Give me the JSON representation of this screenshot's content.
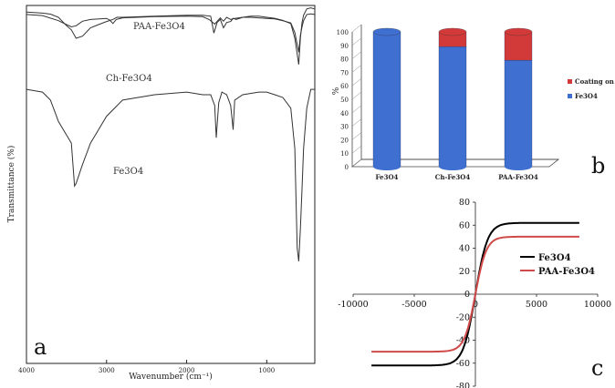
{
  "chart_data": [
    {
      "panel": "a",
      "type": "line",
      "xlabel": "Wavenumber (cm⁻¹)",
      "ylabel": "Transmittance (%)",
      "xlim": [
        4000,
        400
      ],
      "xticks": [
        4000,
        3000,
        2000,
        1000
      ],
      "series": [
        {
          "name": "PAA-Fe3O4",
          "x": [
            4000,
            3800,
            3600,
            3500,
            3440,
            3380,
            3300,
            3200,
            3000,
            2960,
            2920,
            2880,
            2800,
            2400,
            2000,
            1800,
            1720,
            1650,
            1580,
            1540,
            1500,
            1450,
            1400,
            1300,
            1200,
            1100,
            1000,
            900,
            800,
            700,
            650,
            600,
            580,
            560,
            540,
            500,
            450,
            400
          ],
          "y": [
            97,
            95,
            86,
            79,
            75,
            77,
            85,
            88,
            90,
            87,
            81,
            88,
            91,
            93,
            94,
            93,
            88,
            80,
            91,
            85,
            92,
            88,
            90,
            92,
            92,
            91,
            90,
            89,
            86,
            82,
            65,
            30,
            60,
            75,
            86,
            97,
            98,
            97
          ]
        },
        {
          "name": "Ch-Fe3O4",
          "x": [
            4000,
            3800,
            3700,
            3600,
            3500,
            3440,
            3380,
            3300,
            3200,
            3100,
            3000,
            2920,
            2870,
            2800,
            2400,
            2000,
            1800,
            1700,
            1660,
            1620,
            1580,
            1540,
            1500,
            1450,
            1420,
            1380,
            1300,
            1200,
            1100,
            1000,
            900,
            800,
            700,
            650,
            600,
            580,
            560,
            540,
            500,
            450,
            400
          ],
          "y": [
            85,
            84,
            83,
            80,
            72,
            68,
            60,
            62,
            70,
            73,
            76,
            78,
            80,
            80,
            81,
            82,
            82,
            81,
            65,
            75,
            78,
            70,
            75,
            76,
            79,
            78,
            80,
            81,
            81,
            80,
            79,
            77,
            74,
            60,
            35,
            60,
            75,
            82,
            88,
            89,
            88
          ]
        },
        {
          "name": "Fe3O4",
          "x": [
            4000,
            3800,
            3700,
            3600,
            3500,
            3440,
            3400,
            3380,
            3300,
            3200,
            3100,
            3000,
            2800,
            2400,
            2000,
            1800,
            1700,
            1650,
            1630,
            1600,
            1560,
            1500,
            1450,
            1420,
            1400,
            1300,
            1100,
            1000,
            900,
            800,
            700,
            650,
            620,
            600,
            580,
            560,
            540,
            500,
            450,
            400
          ],
          "y": [
            62,
            61,
            58,
            50,
            45,
            42,
            26,
            27,
            34,
            42,
            47,
            52,
            58,
            60,
            61,
            60,
            60,
            56,
            44,
            57,
            61,
            60,
            56,
            47,
            58,
            60,
            61,
            61,
            60,
            59,
            55,
            40,
            3,
            -2,
            10,
            25,
            40,
            55,
            62,
            62
          ]
        }
      ],
      "curve_labels": [
        "PAA-Fe3O4",
        "Ch-Fe3O4",
        "Fe3O4"
      ]
    },
    {
      "panel": "b",
      "type": "bar",
      "stacked": true,
      "categories": [
        "Fe3O4",
        "Ch-Fe3O4",
        "PAA-Fe3O4"
      ],
      "ylabel": "%",
      "ylim": [
        0,
        100
      ],
      "yticks": [
        0,
        10,
        20,
        30,
        40,
        50,
        60,
        70,
        80,
        90,
        100
      ],
      "legend": "right",
      "series": [
        {
          "name": "Fe3O4",
          "values": [
            100,
            89,
            79
          ],
          "color": "#3f6fd0"
        },
        {
          "name": "Coating on NPs",
          "values": [
            0,
            11,
            21
          ],
          "color": "#d23a3a"
        }
      ]
    },
    {
      "panel": "c",
      "type": "line",
      "xlim": [
        -10000,
        10000
      ],
      "ylim": [
        -80,
        80
      ],
      "xticks": [
        -10000,
        -5000,
        0,
        5000,
        10000
      ],
      "yticks": [
        -80,
        -60,
        -40,
        -20,
        0,
        20,
        40,
        60,
        80
      ],
      "legend": "inside",
      "series": [
        {
          "name": "Fe3O4",
          "color": "#000000",
          "Ms": 62,
          "H0": 1000,
          "Hmax": 8500
        },
        {
          "name": "PAA-Fe3O4",
          "color": "#d04a4a",
          "Ms": 50,
          "H0": 900,
          "Hmax": 8500
        }
      ]
    }
  ],
  "panel_labels": {
    "a": "a",
    "b": "b",
    "c": "c"
  }
}
